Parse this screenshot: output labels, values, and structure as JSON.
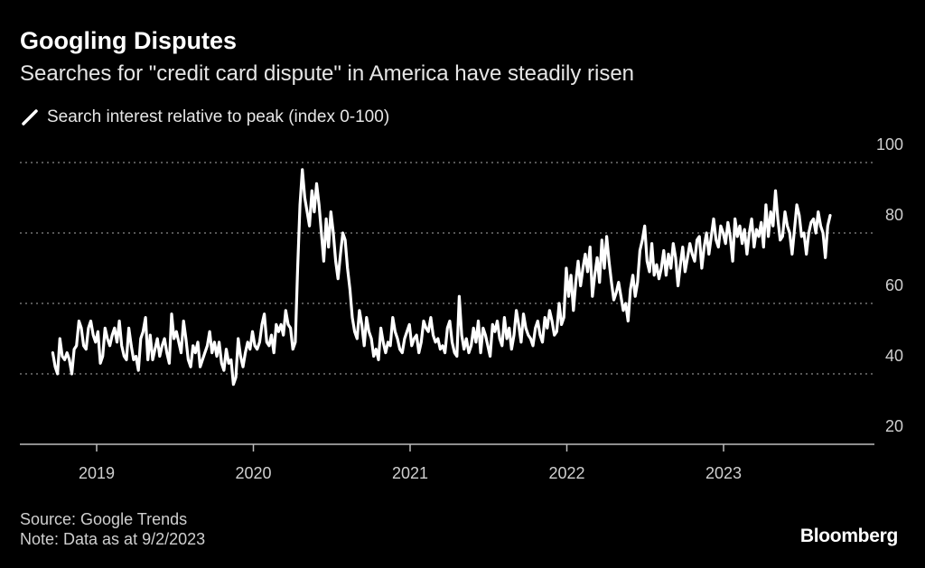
{
  "chart_data": {
    "type": "line",
    "title": "Googling Disputes",
    "subtitle": "Searches for \"credit card dispute\" in America have steadily risen",
    "legend": "Search interest relative to peak (index 0-100)",
    "series_name": "Search interest relative to peak (index 0-100)",
    "line_color": "#ffffff",
    "background": "#000000",
    "ylim": [
      20,
      100
    ],
    "yticks": [
      "100",
      "80",
      "60",
      "40",
      "20"
    ],
    "xticks": [
      "2019",
      "2020",
      "2021",
      "2022",
      "2023"
    ],
    "x_start": 2018.72,
    "x_end": 2023.68,
    "weekly_start": "2018-09-09",
    "values": [
      46,
      42,
      40,
      50,
      45,
      44,
      46,
      44,
      40,
      47,
      48,
      55,
      53,
      48,
      47,
      53,
      55,
      51,
      49,
      52,
      43,
      45,
      53,
      50,
      48,
      51,
      53,
      49,
      55,
      48,
      45,
      44,
      53,
      48,
      44,
      45,
      41,
      50,
      52,
      56,
      44,
      51,
      44,
      47,
      50,
      45,
      48,
      50,
      46,
      43,
      57,
      50,
      52,
      49,
      46,
      55,
      50,
      44,
      42,
      48,
      46,
      49,
      42,
      44,
      46,
      48,
      52,
      46,
      49,
      45,
      49,
      43,
      41,
      47,
      43,
      44,
      37,
      39,
      50,
      45,
      42,
      46,
      49,
      47,
      52,
      48,
      47,
      49,
      54,
      57,
      49,
      48,
      51,
      46,
      54,
      52,
      54,
      51,
      58,
      54,
      53,
      47,
      49,
      70,
      88,
      98,
      90,
      86,
      82,
      92,
      86,
      94,
      88,
      80,
      72,
      84,
      76,
      86,
      80,
      72,
      67,
      74,
      80,
      78,
      70,
      64,
      56,
      52,
      50,
      58,
      54,
      48,
      56,
      52,
      50,
      45,
      47,
      44,
      53,
      49,
      46,
      49,
      48,
      56,
      52,
      50,
      47,
      46,
      50,
      52,
      54,
      48,
      50,
      51,
      46,
      49,
      55,
      53,
      52,
      56,
      51,
      49,
      50,
      47,
      48,
      46,
      53,
      55,
      49,
      46,
      45,
      62,
      51,
      47,
      50,
      46,
      48,
      53,
      49,
      55,
      46,
      53,
      51,
      48,
      45,
      54,
      52,
      55,
      50,
      48,
      56,
      50,
      53,
      47,
      51,
      58,
      54,
      49,
      57,
      53,
      51,
      50,
      48,
      53,
      55,
      51,
      49,
      56,
      53,
      58,
      55,
      51,
      52,
      60,
      54,
      56,
      70,
      62,
      68,
      58,
      66,
      72,
      65,
      70,
      74,
      69,
      76,
      62,
      68,
      73,
      66,
      78,
      70,
      79,
      72,
      66,
      61,
      63,
      66,
      62,
      58,
      60,
      55,
      64,
      68,
      62,
      66,
      75,
      78,
      82,
      72,
      69,
      77,
      68,
      71,
      67,
      70,
      75,
      68,
      74,
      70,
      77,
      73,
      65,
      71,
      76,
      69,
      73,
      77,
      74,
      72,
      78,
      79,
      70,
      76,
      80,
      74,
      79,
      84,
      78,
      76,
      82,
      80,
      77,
      83,
      79,
      72,
      84,
      79,
      82,
      77,
      81,
      74,
      80,
      84,
      76,
      81,
      79,
      83,
      76,
      88,
      79,
      86,
      82,
      92,
      84,
      78,
      79,
      86,
      82,
      80,
      74,
      81,
      88,
      85,
      79,
      80,
      74,
      80,
      83,
      84,
      80,
      86,
      82,
      80,
      73,
      82,
      85
    ]
  },
  "footer": {
    "source": "Source: Google Trends",
    "note": "Note: Data as at 9/2/2023",
    "brand": "Bloomberg"
  }
}
